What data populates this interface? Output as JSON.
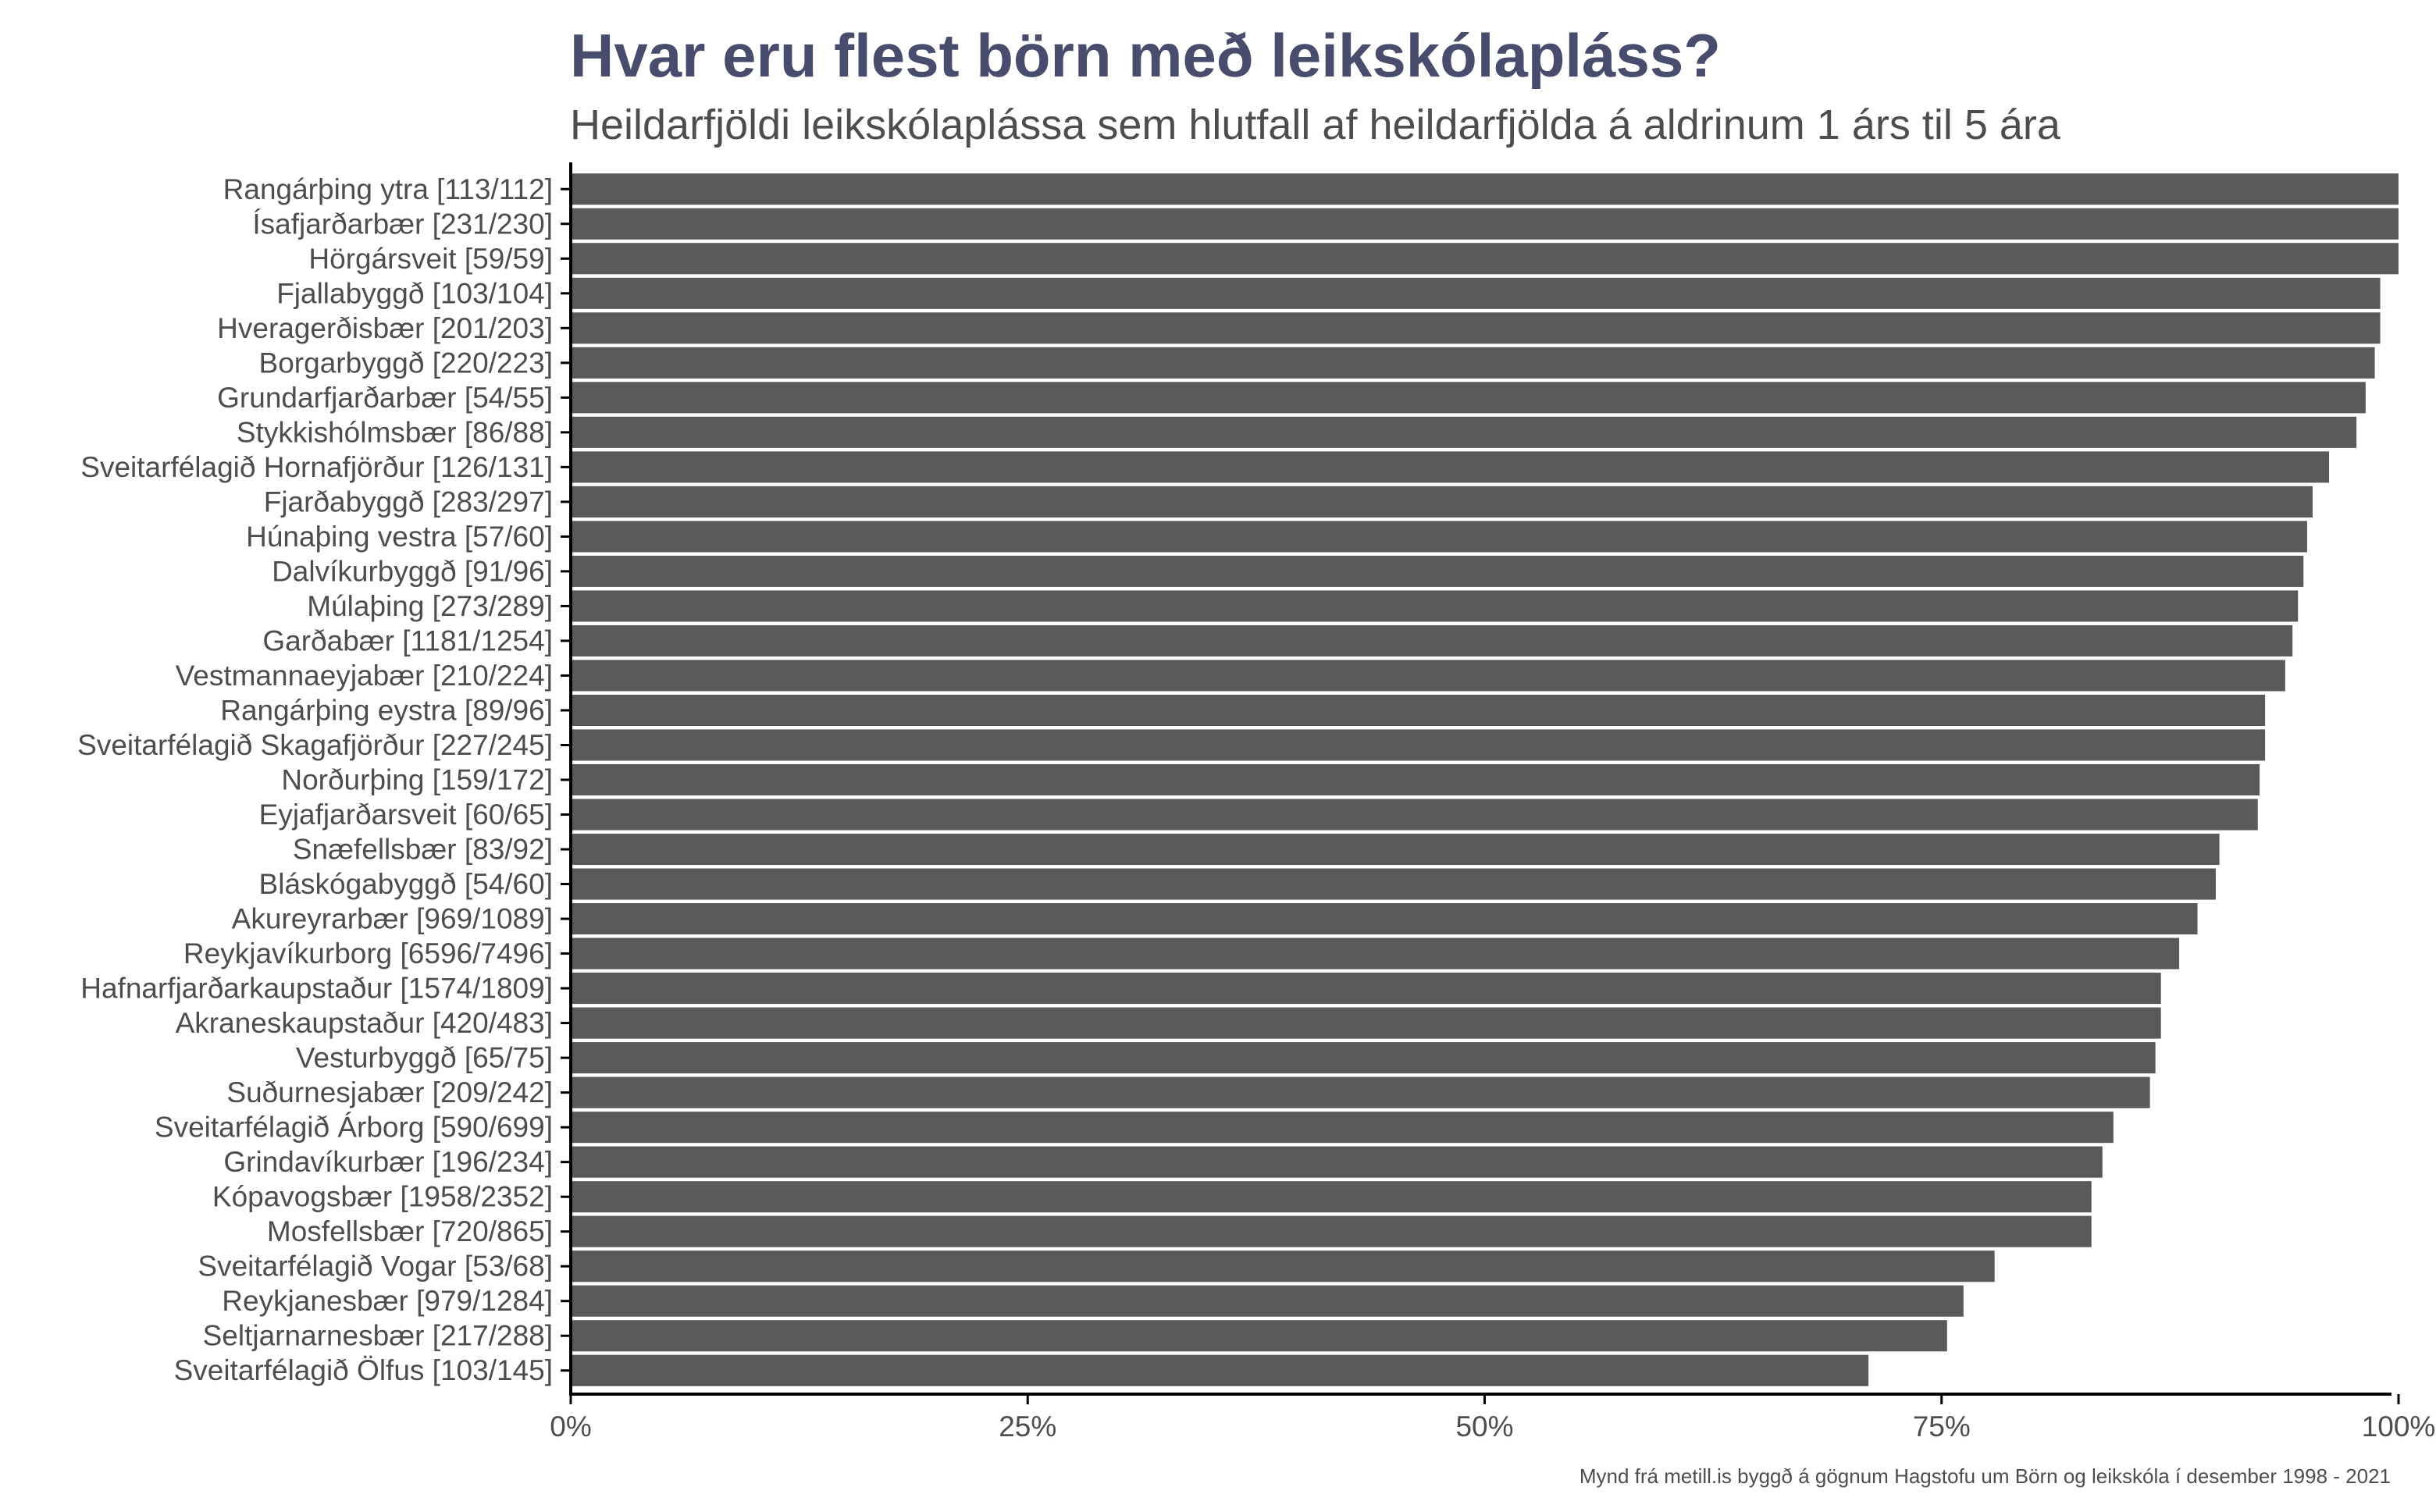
{
  "header": {
    "title": "Hvar eru flest börn með leikskólapláss?",
    "subtitle": "Heildarfjöldi leikskólaplássa sem hlutfall af heildarfjölda á aldrinum 1 árs til 5 ára"
  },
  "caption": "Mynd frá metill.is byggð á gögnum Hagstofu um Börn og leikskóla í desember 1998 - 2021",
  "colors": {
    "bar": "#595959",
    "title": "#484d6d",
    "subtitle": "#4d4d4d",
    "axis_text": "#4d4d4d",
    "axis_line": "#000000",
    "background": "#ffffff"
  },
  "chart_data": {
    "type": "bar",
    "orientation": "horizontal",
    "title": "Hvar eru flest börn með leikskólapláss?",
    "subtitle": "Heildarfjöldi leikskólaplássa sem hlutfall af heildarfjölda á aldrinum 1 árs til 5 ára",
    "xlabel": "",
    "ylabel": "",
    "xlim": [
      0,
      100
    ],
    "x_ticks": [
      "0%",
      "25%",
      "50%",
      "75%",
      "100%"
    ],
    "x_tick_values": [
      0,
      25,
      50,
      75,
      100
    ],
    "grid": false,
    "legend": "none",
    "categories": [
      "Rangárþing ytra [113/112]",
      "Ísafjarðarbær [231/230]",
      "Hörgársveit [59/59]",
      "Fjallabyggð [103/104]",
      "Hveragerðisbær [201/203]",
      "Borgarbyggð [220/223]",
      "Grundarfjarðarbær [54/55]",
      "Stykkishólmsbær [86/88]",
      "Sveitarfélagið Hornafjörður [126/131]",
      "Fjarðabyggð [283/297]",
      "Húnaþing vestra [57/60]",
      "Dalvíkurbyggð [91/96]",
      "Múlaþing [273/289]",
      "Garðabær [1181/1254]",
      "Vestmannaeyjabær [210/224]",
      "Rangárþing eystra [89/96]",
      "Sveitarfélagið Skagafjörður [227/245]",
      "Norðurþing [159/172]",
      "Eyjafjarðarsveit [60/65]",
      "Snæfellsbær [83/92]",
      "Bláskógabyggð [54/60]",
      "Akureyrarbær [969/1089]",
      "Reykjavíkurborg [6596/7496]",
      "Hafnarfjarðarkaupstaður [1574/1809]",
      "Akraneskaupstaður [420/483]",
      "Vesturbyggð [65/75]",
      "Suðurnesjabær [209/242]",
      "Sveitarfélagið Árborg [590/699]",
      "Grindavíkurbær [196/234]",
      "Kópavogsbær [1958/2352]",
      "Mosfellsbær [720/865]",
      "Sveitarfélagið Vogar [53/68]",
      "Reykjanesbær [979/1284]",
      "Seltjarnarnesbær [217/288]",
      "Sveitarfélagið Ölfus [103/145]"
    ],
    "values": [
      100,
      100,
      100,
      99.0,
      99.0,
      98.7,
      98.2,
      97.7,
      96.2,
      95.3,
      95.0,
      94.8,
      94.5,
      94.2,
      93.8,
      92.7,
      92.7,
      92.4,
      92.3,
      90.2,
      90.0,
      89.0,
      88.0,
      87.0,
      87.0,
      86.7,
      86.4,
      84.4,
      83.8,
      83.2,
      83.2,
      77.9,
      76.2,
      75.3,
      71.0
    ]
  }
}
